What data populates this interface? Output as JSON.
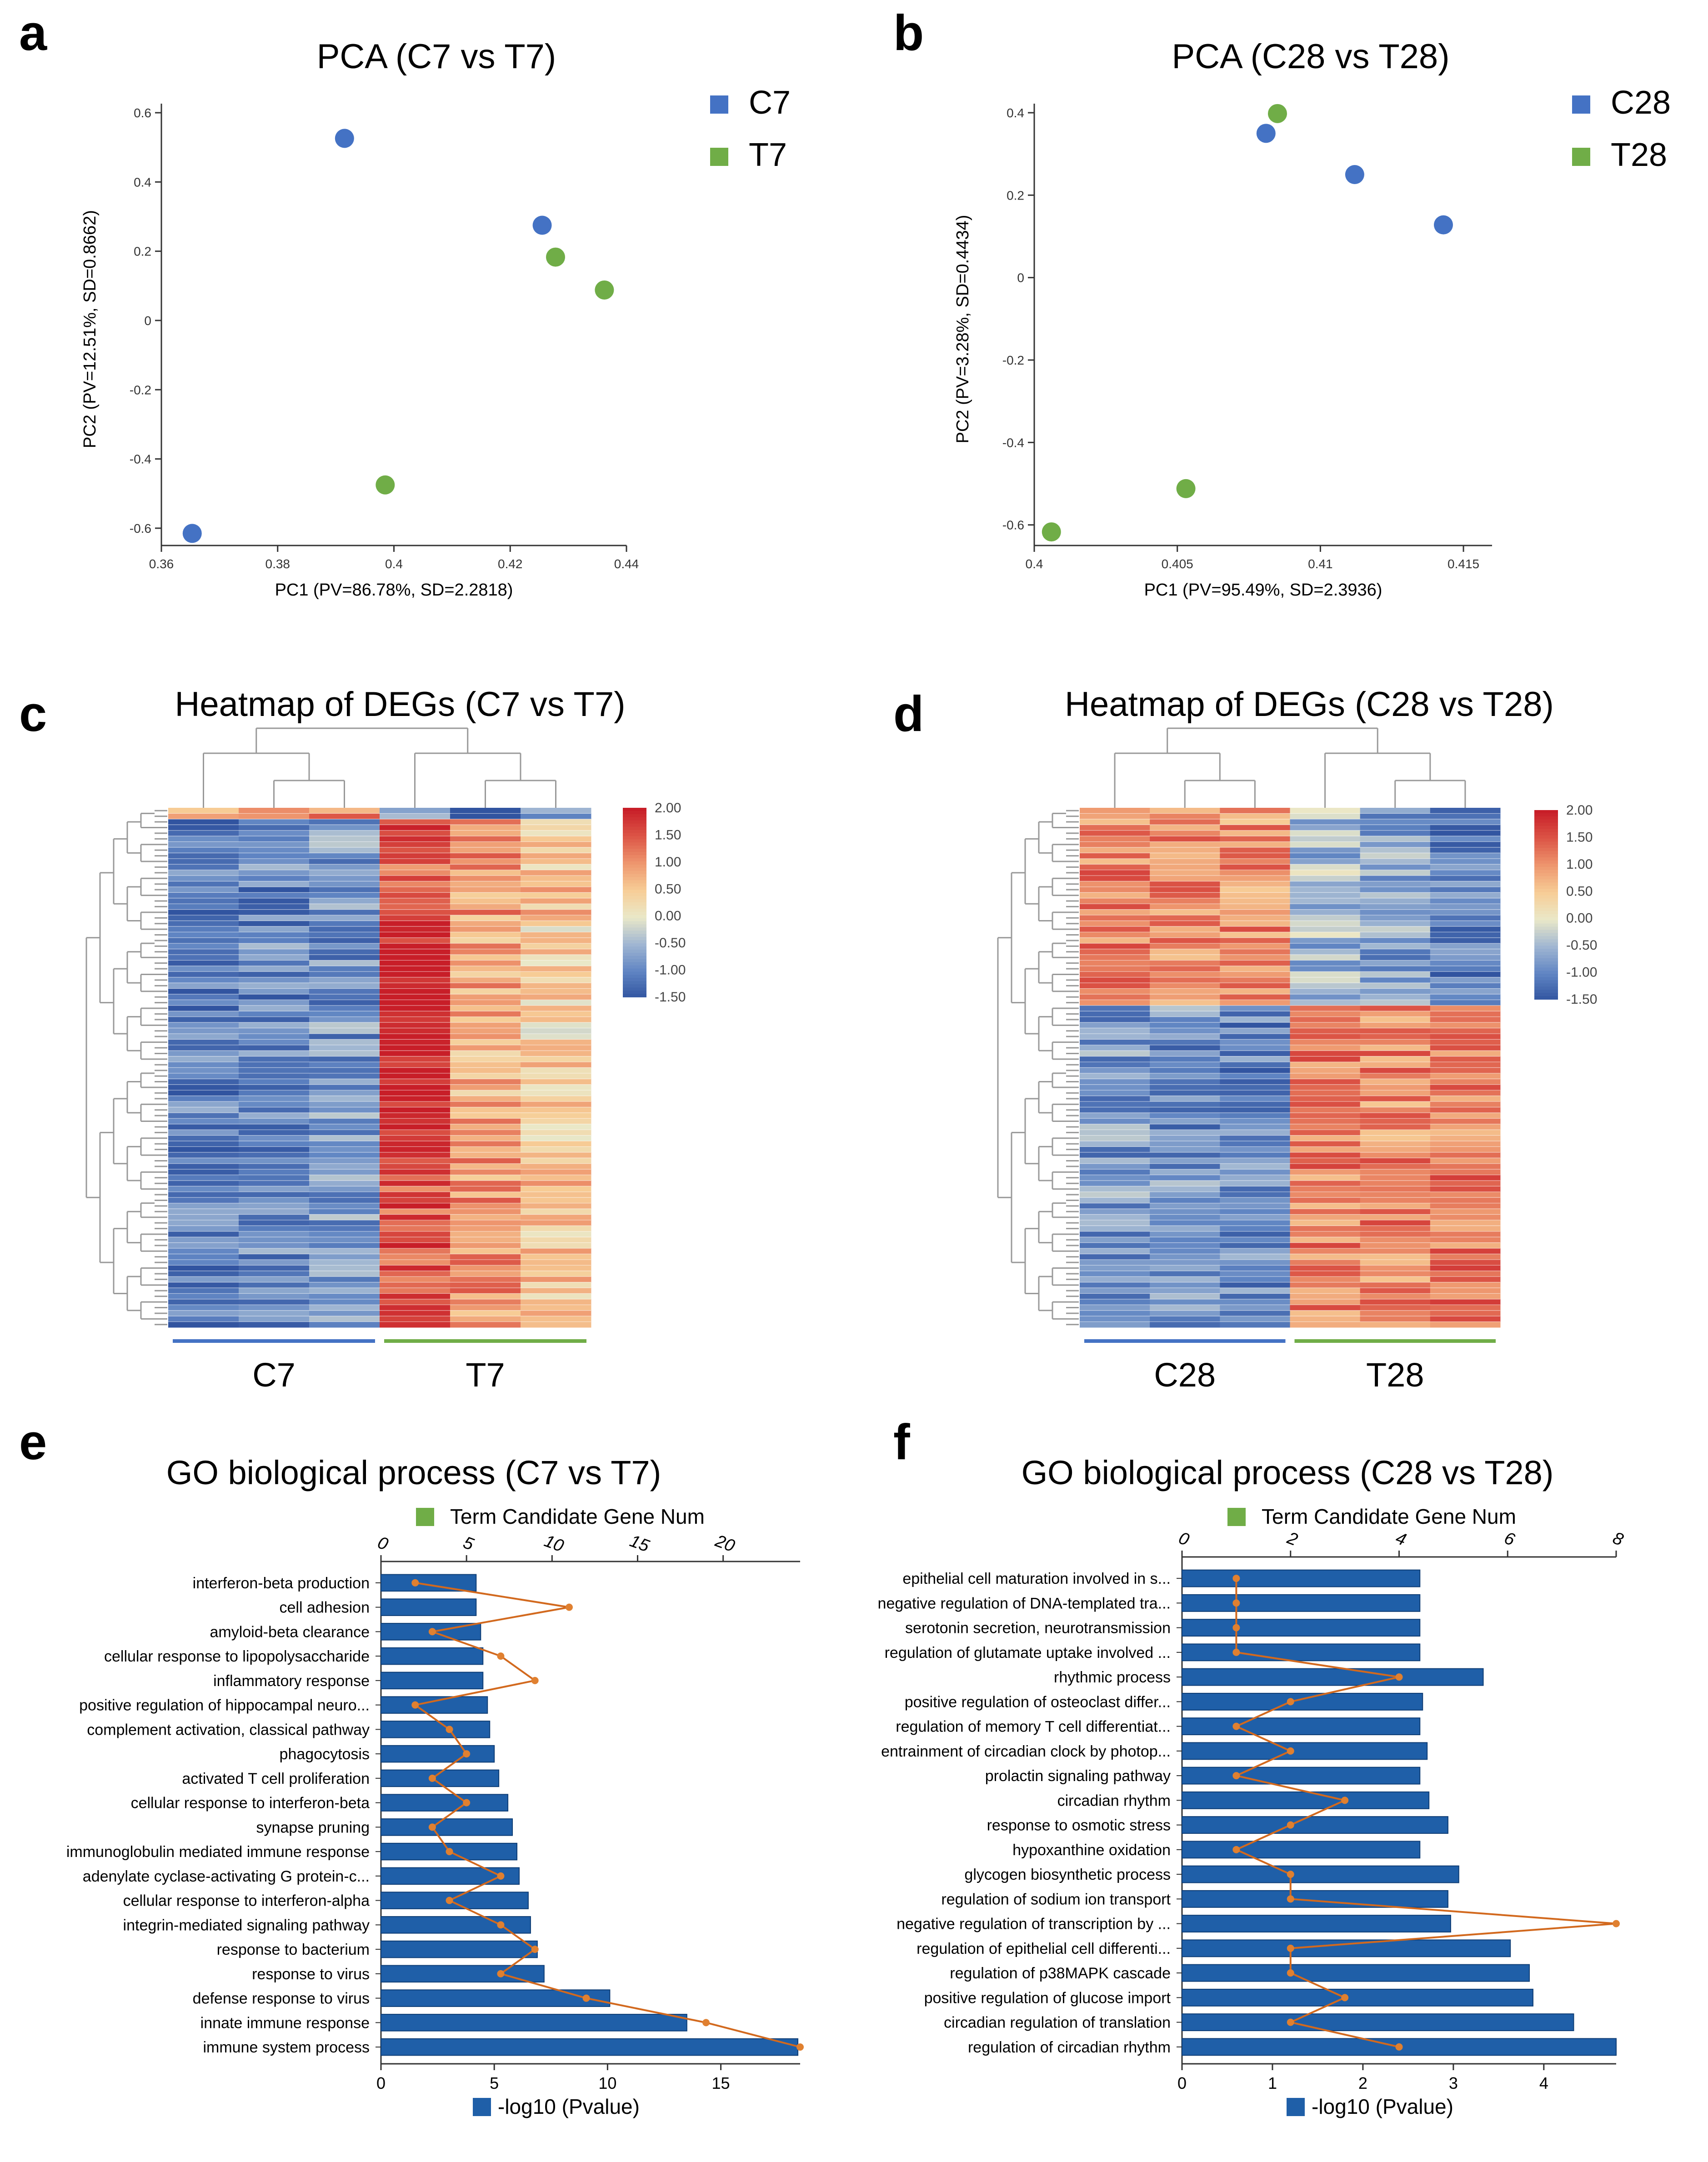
{
  "panels": {
    "a": {
      "letter": "a"
    },
    "b": {
      "letter": "b"
    },
    "c": {
      "letter": "c"
    },
    "d": {
      "letter": "d"
    },
    "e": {
      "letter": "e"
    },
    "f": {
      "letter": "f"
    }
  },
  "colors": {
    "blue": "#4472C4",
    "green": "#70AD47",
    "bar": "#1F5FA8",
    "bar_edge": "#0E3D75",
    "line": "#D2691E"
  },
  "chart_data": [
    {
      "id": "a",
      "type": "scatter",
      "title": "PCA (C7 vs T7)",
      "xlabel": "PC1 (PV=86.78%, SD=2.2818)",
      "ylabel": "PC2 (PV=12.51%, SD=0.8662)",
      "xlim": [
        0.36,
        0.44
      ],
      "ylim": [
        -0.65,
        0.6
      ],
      "xticks": [
        "0.36",
        "0.38",
        "0.4",
        "0.42",
        "0.44"
      ],
      "yticks": [
        "0.6",
        "0.4",
        "0.2",
        "0",
        "-0.2",
        "-0.4",
        "-0.6"
      ],
      "xtick_values": [
        0.36,
        0.38,
        0.4,
        0.42,
        0.44
      ],
      "ytick_values": [
        0.6,
        0.4,
        0.2,
        0,
        -0.2,
        -0.4,
        -0.6
      ],
      "legend": [
        "C7",
        "T7"
      ],
      "series": [
        {
          "name": "C7",
          "color": "#4472C4",
          "points": [
            [
              0.3653,
              -0.615
            ],
            [
              0.3915,
              0.526
            ],
            [
              0.4255,
              0.275
            ]
          ]
        },
        {
          "name": "T7",
          "color": "#70AD47",
          "points": [
            [
              0.4278,
              0.183
            ],
            [
              0.4362,
              0.088
            ],
            [
              0.3985,
              -0.475
            ]
          ]
        }
      ]
    },
    {
      "id": "b",
      "type": "scatter",
      "title": "PCA (C28 vs T28)",
      "xlabel": "PC1 (PV=95.49%, SD=2.3936)",
      "ylabel": "PC2 (PV=3.28%, SD=0.4434)",
      "xlim": [
        0.4,
        0.416
      ],
      "ylim": [
        -0.65,
        0.4
      ],
      "xticks": [
        "0.4",
        "0.405",
        "0.41",
        "0.415"
      ],
      "yticks": [
        "0.4",
        "0.2",
        "0",
        "-0.2",
        "-0.4",
        "-0.6"
      ],
      "xtick_values": [
        0.4,
        0.405,
        0.41,
        0.415
      ],
      "ytick_values": [
        0.4,
        0.2,
        0,
        -0.2,
        -0.4,
        -0.6
      ],
      "legend": [
        "C28",
        "T28"
      ],
      "series": [
        {
          "name": "C28",
          "color": "#4472C4",
          "points": [
            [
              0.4081,
              0.35
            ],
            [
              0.4112,
              0.25
            ],
            [
              0.4143,
              0.128
            ]
          ]
        },
        {
          "name": "T28",
          "color": "#70AD47",
          "points": [
            [
              0.4085,
              0.398
            ],
            [
              0.4053,
              -0.512
            ],
            [
              0.4006,
              -0.617
            ]
          ]
        }
      ]
    },
    {
      "id": "c",
      "type": "heatmap",
      "title": "Heatmap of DEGs (C7 vs T7)",
      "groups": [
        "C7",
        "T7"
      ],
      "colorbar_ticks": [
        "2.00",
        "1.50",
        "1.00",
        "0.50",
        "0.00",
        "-0.50",
        "-1.00",
        "-1.50"
      ]
    },
    {
      "id": "d",
      "type": "heatmap",
      "title": "Heatmap of DEGs (C28 vs T28)",
      "groups": [
        "C28",
        "T28"
      ],
      "colorbar_ticks": [
        "2.00",
        "1.50",
        "1.00",
        "0.50",
        "0.00",
        "-0.50",
        "-1.00",
        "-1.50"
      ]
    },
    {
      "id": "e",
      "type": "bar",
      "title": "GO biological process (C7 vs T7)",
      "legend_top": "Term Candidate Gene Num",
      "legend_bottom": "-log10 (Pvalue)",
      "bottom_ticks": [
        "0",
        "5",
        "10",
        "15"
      ],
      "bottom_tick_values": [
        0,
        5,
        10,
        15
      ],
      "bottom_max": 18.5,
      "top_ticks": [
        "0",
        "5",
        "10",
        "15",
        "20"
      ],
      "top_tick_values": [
        0,
        5,
        10,
        15,
        20
      ],
      "top_max": 24.5,
      "categories": [
        "interferon-beta production",
        "cell adhesion",
        "amyloid-beta clearance",
        "cellular response to lipopolysaccharide",
        "inflammatory response",
        "positive regulation of hippocampal neuro...",
        "complement activation, classical pathway",
        "phagocytosis",
        "activated T cell proliferation",
        "cellular response to interferon-beta",
        "synapse pruning",
        "immunoglobulin mediated immune response",
        "adenylate cyclase-activating G protein-c...",
        "cellular response to interferon-alpha",
        "integrin-mediated signaling pathway",
        "response to bacterium",
        "response to virus",
        "defense response to virus",
        "innate immune response",
        "immune system process"
      ],
      "values": [
        4.2,
        4.2,
        4.4,
        4.5,
        4.5,
        4.7,
        4.8,
        5.0,
        5.2,
        5.6,
        5.8,
        6.0,
        6.1,
        6.5,
        6.6,
        6.9,
        7.2,
        10.1,
        13.5,
        18.4
      ],
      "gene_num": [
        2,
        11,
        3,
        7,
        9,
        2,
        4,
        5,
        3,
        5,
        3,
        4,
        7,
        4,
        7,
        9,
        7,
        12,
        19,
        24.5
      ]
    },
    {
      "id": "f",
      "type": "bar",
      "title": "GO biological process (C28 vs T28)",
      "legend_top": "Term Candidate Gene Num",
      "legend_bottom": "-log10 (Pvalue)",
      "bottom_ticks": [
        "0",
        "1",
        "2",
        "3",
        "4"
      ],
      "bottom_tick_values": [
        0,
        1,
        2,
        3,
        4
      ],
      "bottom_max": 4.8,
      "top_ticks": [
        "0",
        "2",
        "4",
        "6",
        "8"
      ],
      "top_tick_values": [
        0,
        2,
        4,
        6,
        8
      ],
      "top_max": 8,
      "categories": [
        "epithelial cell maturation involved in s...",
        "negative regulation of DNA-templated tra...",
        "serotonin secretion, neurotransmission",
        "regulation of glutamate uptake involved ...",
        "rhythmic process",
        "positive regulation of osteoclast differ...",
        "regulation of memory T cell differentiat...",
        "entrainment of circadian clock by photop...",
        "prolactin signaling pathway",
        "circadian rhythm",
        "response to osmotic stress",
        "hypoxanthine oxidation",
        "glycogen biosynthetic process",
        "regulation of sodium ion transport",
        "negative regulation of transcription by ...",
        "regulation of epithelial cell differenti...",
        "regulation of p38MAPK cascade",
        "positive regulation of glucose import",
        "circadian regulation of translation",
        "regulation of circadian rhythm"
      ],
      "values": [
        2.63,
        2.63,
        2.63,
        2.63,
        3.33,
        2.66,
        2.63,
        2.71,
        2.63,
        2.73,
        2.94,
        2.63,
        3.06,
        2.94,
        2.97,
        3.63,
        3.84,
        3.88,
        4.33,
        4.8
      ],
      "gene_num": [
        1,
        1,
        1,
        1,
        4,
        2,
        1,
        2,
        1,
        3,
        2,
        1,
        2,
        2,
        8,
        2,
        2,
        3,
        2,
        4
      ]
    }
  ]
}
